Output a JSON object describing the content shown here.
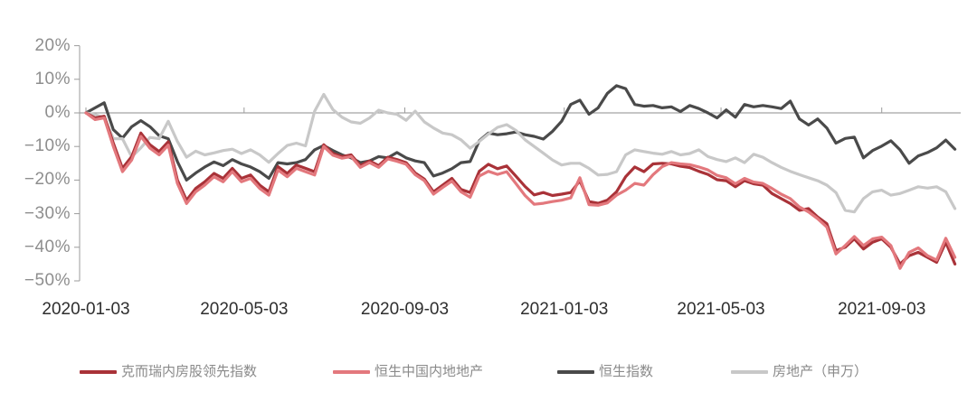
{
  "chart_data": {
    "type": "line",
    "title": "",
    "x_axis": {
      "tick_labels": [
        "2020-01-03",
        "2020-05-03",
        "2020-09-03",
        "2021-01-03",
        "2021-05-03",
        "2021-09-03"
      ],
      "tick_weeks": [
        0,
        17.29,
        34.86,
        52.29,
        69.43,
        87
      ],
      "unit": "weekly data from 2020-01-03 to 2021-10-29 (96 points per series)"
    },
    "y_axis": {
      "ticks": [
        20,
        10,
        0,
        -10,
        -20,
        -30,
        -40,
        -50
      ],
      "tick_labels": [
        "20%",
        "10%",
        "0%",
        "−10%",
        "−20%",
        "−30%",
        "−40%",
        "−50%"
      ],
      "ylim": [
        -50,
        20
      ],
      "unit": "%"
    },
    "grid": false,
    "zero_line": true,
    "legend_position": "bottom",
    "series": [
      {
        "name": "克而瑞内房股领先指数",
        "color": "#A93238",
        "values": [
          0,
          -1.5,
          -1,
          -9,
          -16.5,
          -13,
          -6,
          -9.5,
          -11.5,
          -8.6,
          -20,
          -26,
          -22.5,
          -20.5,
          -18,
          -19.5,
          -16.5,
          -19.5,
          -18.5,
          -21.5,
          -23.5,
          -16,
          -18,
          -15.5,
          -16.5,
          -17.5,
          -9.5,
          -12.1,
          -13,
          -12.5,
          -15.7,
          -14.3,
          -15.7,
          -13.2,
          -13.9,
          -14.8,
          -17.9,
          -19.7,
          -23.5,
          -21.5,
          -19.5,
          -22.8,
          -23.7,
          -17.4,
          -15.3,
          -16.6,
          -15.8,
          -18.8,
          -21.9,
          -24.4,
          -23.7,
          -24.6,
          -24.2,
          -23.7,
          -20.2,
          -26.4,
          -26.9,
          -26,
          -23.5,
          -19,
          -16.1,
          -17.5,
          -15.2,
          -15,
          -15.2,
          -15.9,
          -16.3,
          -17.4,
          -18.3,
          -19.9,
          -20.2,
          -22,
          -20.2,
          -21.1,
          -21.5,
          -24,
          -25.5,
          -27,
          -29,
          -28.5,
          -31,
          -33,
          -41,
          -40,
          -37.5,
          -40.5,
          -38.5,
          -37.5,
          -40,
          -45,
          -42.5,
          -41.5,
          -43,
          -44.5,
          -38.5,
          -45
        ]
      },
      {
        "name": "恒生中国内地地产",
        "color": "#E3787D",
        "values": [
          0,
          -2,
          -1.5,
          -10,
          -17.5,
          -14,
          -7,
          -10.5,
          -12.5,
          -9.6,
          -21,
          -27,
          -23.5,
          -21.5,
          -19,
          -20.5,
          -17.5,
          -20.5,
          -19.5,
          -22.5,
          -24.5,
          -17,
          -19,
          -16.5,
          -17.5,
          -18.5,
          -10,
          -12.6,
          -13.5,
          -13,
          -16.2,
          -14.8,
          -16.2,
          -13.7,
          -14.4,
          -15.3,
          -18.4,
          -20.2,
          -24.2,
          -22.2,
          -20.3,
          -23.5,
          -25.1,
          -18.8,
          -17.4,
          -18.3,
          -17.5,
          -21,
          -24.6,
          -27.2,
          -26.9,
          -26.4,
          -26,
          -25.3,
          -19.3,
          -27.3,
          -27.5,
          -26.8,
          -24.5,
          -23,
          -21,
          -21.5,
          -18.4,
          -16,
          -14.8,
          -15.2,
          -15.4,
          -16.1,
          -17,
          -18.6,
          -19.3,
          -21.1,
          -19.5,
          -20.6,
          -21,
          -22.5,
          -24.2,
          -25.5,
          -28,
          -29.5,
          -31.5,
          -34,
          -42,
          -39.5,
          -36.8,
          -39.5,
          -37.5,
          -37,
          -39.5,
          -46.3,
          -41.5,
          -40.2,
          -42.5,
          -43.8,
          -37.3,
          -43
        ]
      },
      {
        "name": "恒生指数",
        "color": "#4A4A4A",
        "values": [
          0,
          1.5,
          3,
          -5,
          -7.5,
          -4.1,
          -2.3,
          -4.1,
          -6.8,
          -7.7,
          -14.5,
          -20,
          -17.9,
          -16.1,
          -14.6,
          -15.7,
          -13.9,
          -15.2,
          -16.1,
          -17.5,
          -19.5,
          -14.8,
          -15.2,
          -14.8,
          -13.9,
          -11,
          -9.7,
          -11.2,
          -12.5,
          -13.4,
          -14.8,
          -14.3,
          -13,
          -13.4,
          -11.8,
          -13.4,
          -14.3,
          -14.8,
          -18.8,
          -17.9,
          -16.6,
          -14.8,
          -14.5,
          -8.3,
          -6,
          -6.5,
          -6.2,
          -5.7,
          -6.5,
          -7,
          -7.8,
          -5.5,
          -2.5,
          2.5,
          3.8,
          -0.4,
          1.5,
          5.8,
          8.1,
          7.2,
          2.5,
          2,
          2.2,
          1.5,
          1.8,
          0.4,
          2.2,
          1.3,
          0,
          -1.5,
          0.9,
          -1.3,
          2.5,
          1.8,
          2.2,
          1.8,
          1.3,
          3.5,
          -1.8,
          -3.6,
          -1.8,
          -4.5,
          -9,
          -7.6,
          -7.2,
          -13.4,
          -11.2,
          -9.9,
          -8.3,
          -11,
          -15,
          -12.8,
          -11.8,
          -10.4,
          -8.1,
          -10.8
        ]
      },
      {
        "name": "房地产（申万）",
        "color": "#C8C8C8",
        "values": [
          0,
          -0.5,
          -1.4,
          -7.7,
          -7.7,
          -13.1,
          -10.4,
          -7.3,
          -7.7,
          -2.5,
          -8.5,
          -13.2,
          -11.4,
          -12.5,
          -11.9,
          -11.2,
          -10.8,
          -12.1,
          -11,
          -12.5,
          -14.7,
          -12.1,
          -9.7,
          -9,
          -9.8,
          0.5,
          5.5,
          1,
          -1.3,
          -2.7,
          -3.1,
          -1.5,
          0.8,
          0,
          -0.4,
          -2.2,
          0.5,
          -2.7,
          -4.5,
          -6,
          -6.5,
          -8,
          -10.5,
          -8.5,
          -6.3,
          -4.3,
          -3.5,
          -5.2,
          -8,
          -10,
          -12,
          -14,
          -15.5,
          -15,
          -15,
          -16.5,
          -18.5,
          -18.3,
          -17.5,
          -12.5,
          -11,
          -11.5,
          -12,
          -12.3,
          -11.5,
          -12.5,
          -12.1,
          -11,
          -13,
          -13.9,
          -14.5,
          -13.4,
          -14.8,
          -12.3,
          -13.2,
          -14.8,
          -16.2,
          -17.4,
          -18.4,
          -19.3,
          -20.2,
          -21.5,
          -23.7,
          -29,
          -29.5,
          -25.5,
          -23.5,
          -23,
          -24.5,
          -24,
          -23,
          -22,
          -22.4,
          -22,
          -23.5,
          -28.5
        ]
      }
    ]
  },
  "legend": {
    "items": [
      {
        "label": "克而瑞内房股领先指数"
      },
      {
        "label": "恒生中国内地地产"
      },
      {
        "label": "恒生指数"
      },
      {
        "label": "房地产（申万）"
      }
    ]
  },
  "colors": {
    "background": "#FFFFFF",
    "axis_line": "#9B9B9B",
    "zero_line": "#8E8E8E",
    "y_label": "#8E8E8E",
    "x_label": "#2E2E2E",
    "legend_label": "#8A8A8A"
  }
}
